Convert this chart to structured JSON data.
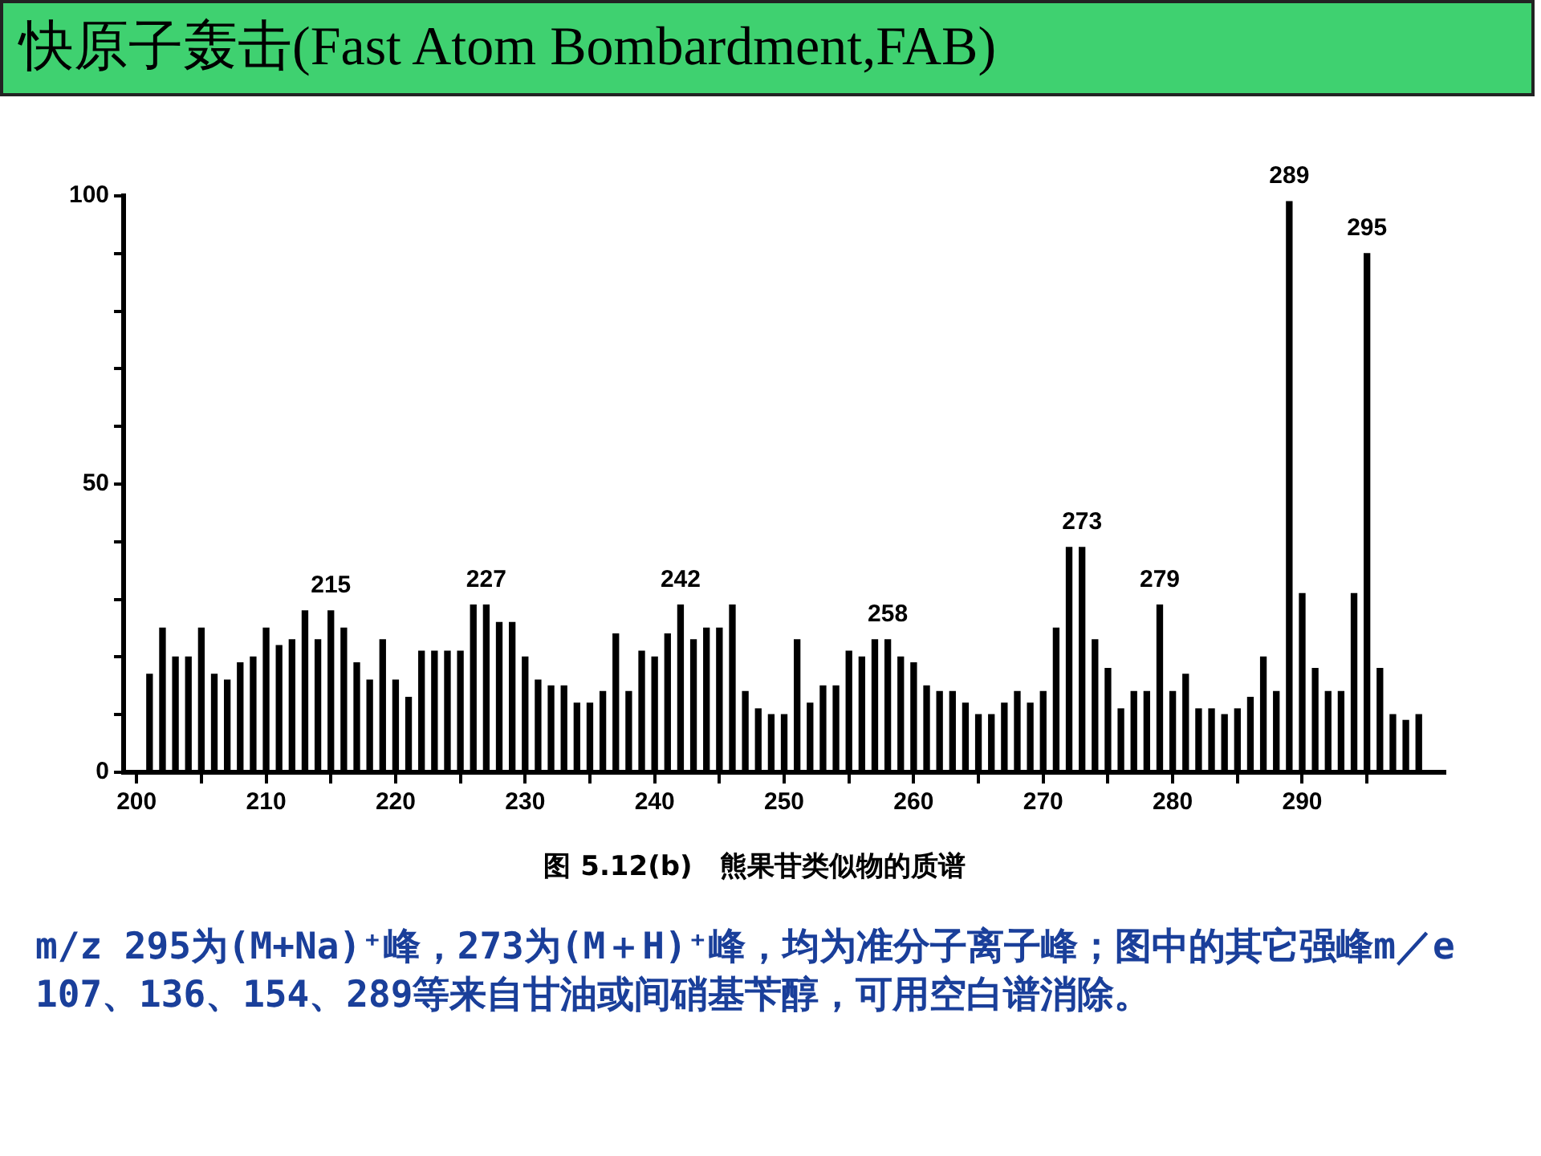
{
  "chart_data": {
    "type": "bar",
    "title": "快原子轰击(Fast Atom Bombardment,FAB)",
    "x": [
      201,
      202,
      203,
      204,
      205,
      206,
      207,
      208,
      209,
      210,
      211,
      212,
      213,
      214,
      215,
      216,
      217,
      218,
      219,
      220,
      221,
      222,
      223,
      224,
      225,
      226,
      227,
      228,
      229,
      230,
      231,
      232,
      233,
      234,
      235,
      236,
      237,
      238,
      239,
      240,
      241,
      242,
      243,
      244,
      245,
      246,
      247,
      248,
      249,
      250,
      251,
      252,
      253,
      254,
      255,
      256,
      257,
      258,
      259,
      260,
      261,
      262,
      263,
      264,
      265,
      266,
      267,
      268,
      269,
      270,
      271,
      272,
      273,
      274,
      275,
      276,
      277,
      278,
      279,
      280,
      281,
      282,
      283,
      284,
      285,
      286,
      287,
      288,
      289,
      290,
      291,
      292,
      293,
      294,
      295,
      296,
      297,
      298,
      299
    ],
    "values": [
      17,
      25,
      20,
      20,
      25,
      17,
      16,
      19,
      20,
      25,
      22,
      23,
      28,
      23,
      28,
      25,
      19,
      16,
      23,
      16,
      13,
      21,
      21,
      21,
      21,
      29,
      29,
      26,
      26,
      20,
      16,
      15,
      15,
      12,
      12,
      14,
      24,
      14,
      21,
      20,
      24,
      29,
      23,
      25,
      25,
      29,
      14,
      11,
      10,
      10,
      23,
      12,
      15,
      15,
      21,
      20,
      23,
      23,
      20,
      19,
      15,
      14,
      14,
      12,
      10,
      10,
      12,
      14,
      12,
      14,
      25,
      39,
      39,
      23,
      18,
      11,
      14,
      14,
      29,
      14,
      17,
      11,
      11,
      10,
      11,
      13,
      20,
      14,
      99,
      31,
      18,
      14,
      14,
      31,
      90,
      18,
      10,
      9,
      10
    ],
    "color": "#000000",
    "xlim": [
      199,
      301
    ],
    "xticks": [
      200,
      {
        "value": 205,
        "label": null
      },
      210,
      {
        "value": 215,
        "label": null
      },
      220,
      {
        "value": 225,
        "label": null
      },
      230,
      {
        "value": 235,
        "label": null
      },
      240,
      {
        "value": 245,
        "label": null
      },
      250,
      {
        "value": 255,
        "label": null
      },
      260,
      {
        "value": 265,
        "label": null
      },
      270,
      {
        "value": 275,
        "label": null
      },
      280,
      {
        "value": 285,
        "label": null
      },
      290,
      {
        "value": 295,
        "label": null
      }
    ],
    "ylim": [
      0,
      100
    ],
    "yticks": [
      0,
      {
        "value": 10,
        "label": null
      },
      {
        "value": 20,
        "label": null
      },
      {
        "value": 30,
        "label": null
      },
      {
        "value": 40,
        "label": null
      },
      50,
      {
        "value": 60,
        "label": null
      },
      {
        "value": 70,
        "label": null
      },
      {
        "value": 80,
        "label": null
      },
      {
        "value": 90,
        "label": null
      },
      100
    ],
    "annotations": [
      {
        "text": "215",
        "x": 215,
        "y": 28
      },
      {
        "text": "227",
        "x": 227,
        "y": 29
      },
      {
        "text": "242",
        "x": 242,
        "y": 29
      },
      {
        "text": "258",
        "x": 258,
        "y": 23
      },
      {
        "text": "273",
        "x": 273,
        "y": 39
      },
      {
        "text": "279",
        "x": 279,
        "y": 29
      },
      {
        "text": "289",
        "x": 289,
        "y": 99
      },
      {
        "text": "295",
        "x": 295,
        "y": 90
      },
      "图 5.12(b)　熊果苷类似物的质谱",
      "m/z 295为(M+Na)⁺峰，273为(M＋H)⁺峰，均为准分子离子峰；图中的其它强峰m／e 107、136、154、289等来自甘油或间硝基苄醇，可用空白谱消除。"
    ]
  }
}
